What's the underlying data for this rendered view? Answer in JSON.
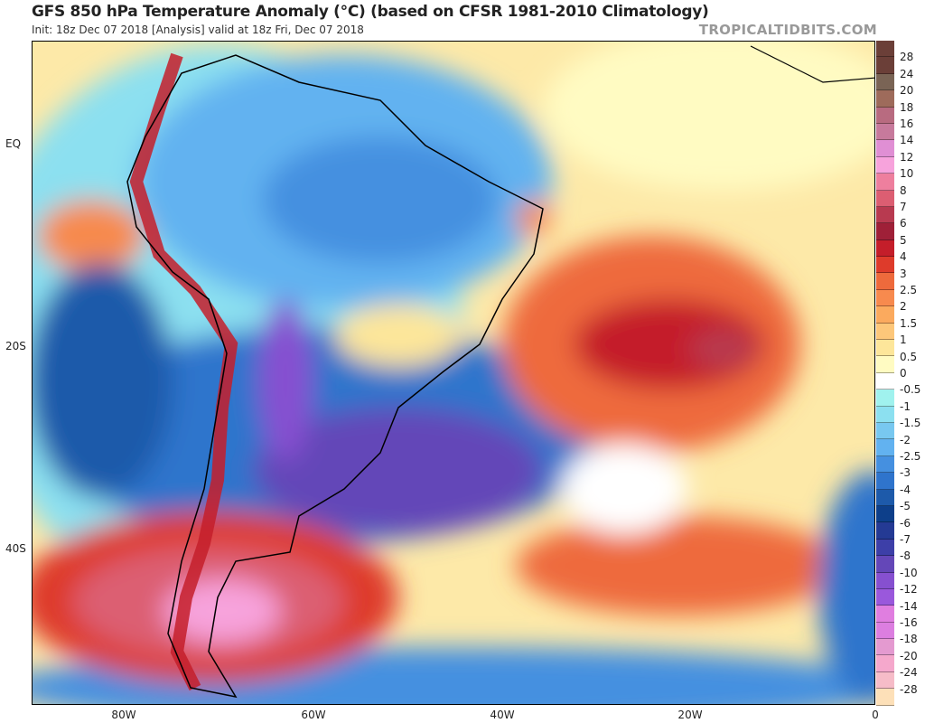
{
  "header": {
    "title": "GFS 850 hPa Temperature Anomaly (°C) (based on CFSR 1981-2010 Climatology)",
    "subtitle": "Init: 18z Dec 07 2018   [Analysis]   valid at 18z Fri, Dec 07 2018",
    "brand": "TROPICALTIDBITS.COM"
  },
  "axes": {
    "lat_labels": [
      "EQ",
      "20S",
      "40S"
    ],
    "lon_labels": [
      "80W",
      "60W",
      "40W",
      "20W",
      "0"
    ]
  },
  "colorbar": {
    "labels": [
      "28",
      "24",
      "20",
      "18",
      "16",
      "14",
      "12",
      "10",
      "8",
      "7",
      "6",
      "5",
      "4",
      "3",
      "2.5",
      "2",
      "1.5",
      "1",
      "0.5",
      "0",
      "-0.5",
      "-1",
      "-1.5",
      "-2",
      "-2.5",
      "-3",
      "-4",
      "-5",
      "-6",
      "-7",
      "-8",
      "-10",
      "-12",
      "-14",
      "-16",
      "-18",
      "-20",
      "-24",
      "-28"
    ],
    "colors": [
      "#6b3f38",
      "#7a6455",
      "#9e6b5b",
      "#b86b80",
      "#c77a9c",
      "#e08fd4",
      "#f7a3dc",
      "#ee7f9e",
      "#dc5e72",
      "#b83a50",
      "#9f2038",
      "#c41e2a",
      "#de3b2b",
      "#ee6a3c",
      "#f78a4e",
      "#fbaa5e",
      "#fdc77a",
      "#fde69a",
      "#fffbc2",
      "#ffffff",
      "#a0f2ee",
      "#8ce0f0",
      "#78c8f0",
      "#62b2f0",
      "#4590e0",
      "#2f74cc",
      "#1d5aaa",
      "#0d3f8a",
      "#243a94",
      "#3d3fa8",
      "#6447b8",
      "#8650d0",
      "#9a58dc",
      "#e07ee0",
      "#dc7ee0",
      "#e49ad0",
      "#f5a8cc",
      "#f6bcc8",
      "#fde0b8"
    ]
  }
}
